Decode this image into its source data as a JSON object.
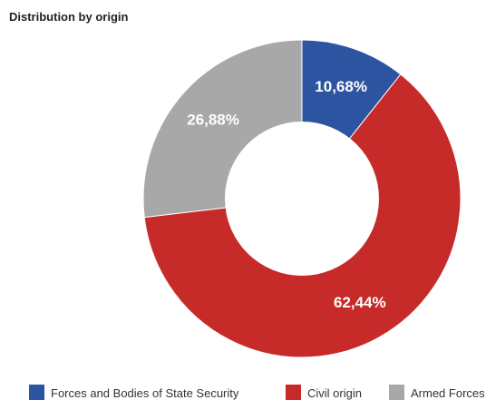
{
  "chart_data": {
    "type": "pie",
    "title": "Distribution by origin",
    "donut": true,
    "slices": [
      {
        "label": "Forces and Bodies of State Security",
        "value": 10.68,
        "display": "10,68%",
        "color": "#2d54a0"
      },
      {
        "label": "Civil origin",
        "value": 62.44,
        "display": "62,44%",
        "color": "#c62b29"
      },
      {
        "label": "Armed Forces",
        "value": 26.88,
        "display": "26,88%",
        "color": "#a8a8a8"
      }
    ],
    "legend_position": "bottom"
  }
}
